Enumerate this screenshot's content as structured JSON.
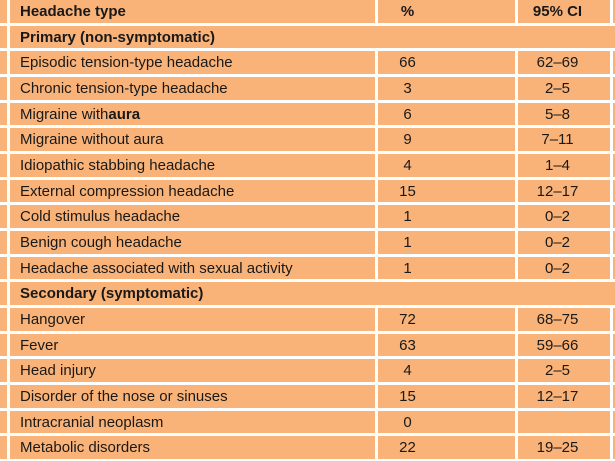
{
  "table": {
    "columns": [
      {
        "label": "Headache type"
      },
      {
        "label": "%"
      },
      {
        "label": "95% CI"
      }
    ],
    "sections": [
      {
        "title": "Primary (non-symptomatic)",
        "rows": [
          {
            "label": "Episodic tension-type headache",
            "pct": "66",
            "ci": "62–69"
          },
          {
            "label": "Chronic tension-type headache",
            "pct": "3",
            "ci": "2–5"
          },
          {
            "label": "Migraine with ",
            "label_bold": "aura",
            "pct": "6",
            "ci": "5–8"
          },
          {
            "label": "Migraine without aura",
            "pct": "9",
            "ci": "7–11"
          },
          {
            "label": "Idiopathic stabbing headache",
            "pct": "4",
            "ci": "1–4"
          },
          {
            "label": "External compression headache",
            "pct": "15",
            "ci": "12–17"
          },
          {
            "label": "Cold stimulus headache",
            "pct": "1",
            "ci": "0–2"
          },
          {
            "label": "Benign cough headache",
            "pct": "1",
            "ci": "0–2"
          },
          {
            "label": "Headache associated with sexual activity",
            "pct": "1",
            "ci": "0–2"
          }
        ]
      },
      {
        "title": "Secondary (symptomatic)",
        "rows": [
          {
            "label": "Hangover",
            "pct": "72",
            "ci": "68–75"
          },
          {
            "label": "Fever",
            "pct": "63",
            "ci": "59–66"
          },
          {
            "label": "Head injury",
            "pct": "4",
            "ci": "2–5"
          },
          {
            "label": "Disorder of the nose or sinuses",
            "pct": "15",
            "ci": "12–17"
          },
          {
            "label": "Intracranial neoplasm",
            "pct": "0",
            "ci": ""
          },
          {
            "label": "Metabolic disorders",
            "pct": "22",
            "ci": "19–25"
          }
        ]
      }
    ]
  },
  "colors": {
    "row_bg": "#f9b378",
    "divider": "#ffffff",
    "text": "#191919"
  }
}
